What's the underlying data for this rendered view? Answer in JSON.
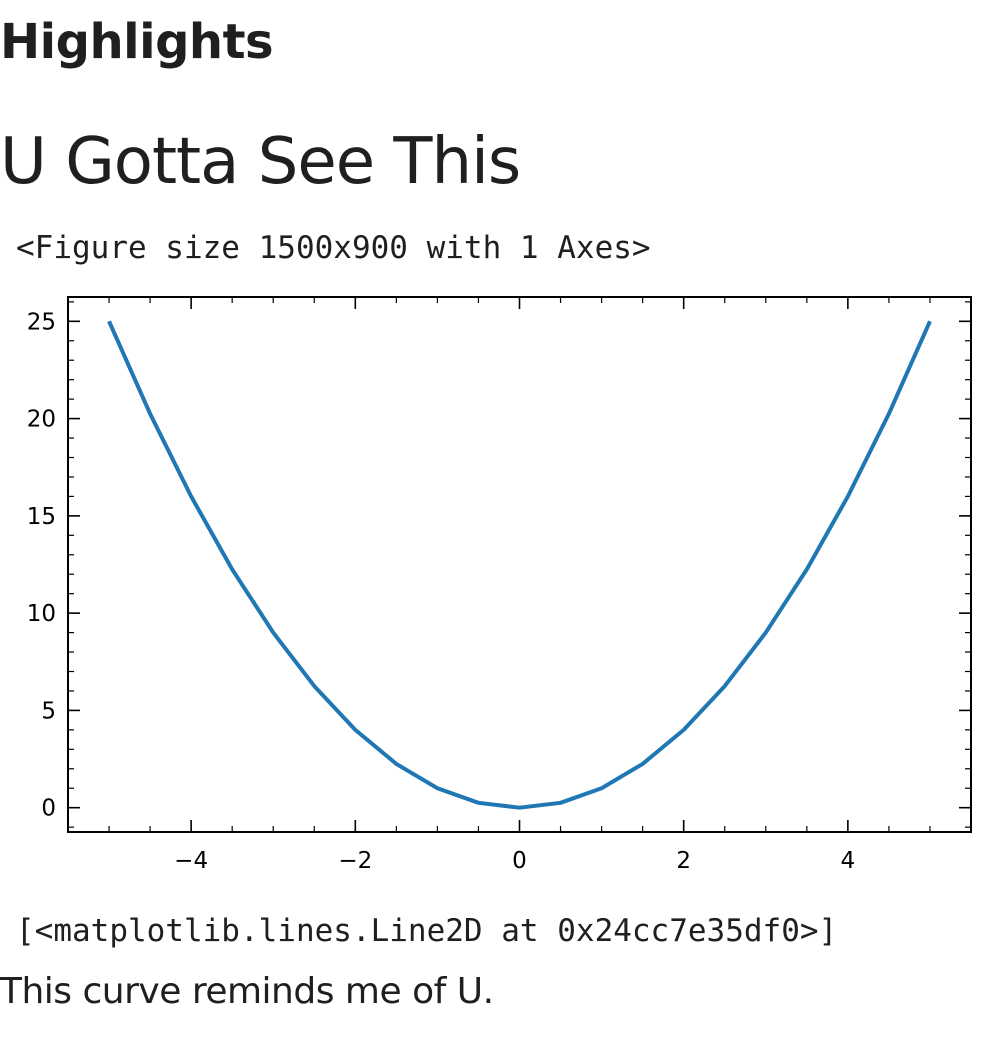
{
  "heading": "Highlights",
  "subheading": "U Gotta See This",
  "figure_caption": "<Figure size 1500x900 with 1 Axes>",
  "line_repr": "[<matplotlib.lines.Line2D at 0x24cc7e35df0>]",
  "note": "This curve reminds me of U.",
  "chart_data": {
    "type": "line",
    "title": "",
    "xlabel": "",
    "ylabel": "",
    "xlim": [
      -5.5,
      5.5
    ],
    "ylim": [
      -1.25,
      26.25
    ],
    "grid": false,
    "xticks": [
      -4,
      -2,
      0,
      2,
      4
    ],
    "xtick_labels": [
      "−4",
      "−2",
      "0",
      "2",
      "4"
    ],
    "yticks": [
      0,
      5,
      10,
      15,
      20,
      25
    ],
    "ytick_labels": [
      "0",
      "5",
      "10",
      "15",
      "20",
      "25"
    ],
    "series": [
      {
        "color": "#1f77b4",
        "x": [
          -5,
          -4.5,
          -4,
          -3.5,
          -3,
          -2.5,
          -2,
          -1.5,
          -1,
          -0.5,
          0,
          0.5,
          1,
          1.5,
          2,
          2.5,
          3,
          3.5,
          4,
          4.5,
          5
        ],
        "y": [
          25,
          20.25,
          16,
          12.25,
          9,
          6.25,
          4,
          2.25,
          1,
          0.25,
          0,
          0.25,
          1,
          2.25,
          4,
          6.25,
          9,
          12.25,
          16,
          20.25,
          25
        ]
      }
    ]
  }
}
